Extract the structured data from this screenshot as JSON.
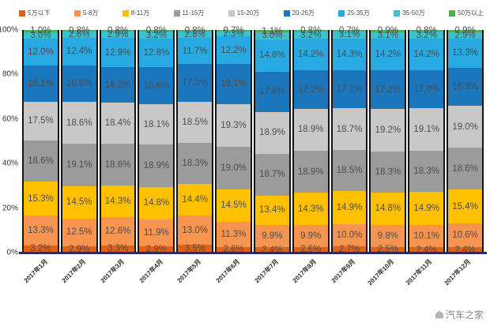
{
  "watermark": "汽车之家",
  "chart_data": {
    "type": "bar",
    "subtype": "100%-stacked-column",
    "title": "",
    "xlabel": "",
    "ylabel": "",
    "ylim": [
      0,
      100
    ],
    "grid": false,
    "legend_position": "top",
    "y_ticks": [
      "100%",
      "80%",
      "60%",
      "40%",
      "20%",
      "0%"
    ],
    "categories": [
      "2017年1月",
      "2017年2月",
      "2017年3月",
      "2017年4月",
      "2017年5月",
      "2017年6月",
      "2017年7月",
      "2017年8月",
      "2017年9月",
      "2017年10月",
      "2017年11月",
      "2017年12月"
    ],
    "series": [
      {
        "name": "5万以下",
        "color": "#E0611A",
        "values": [
          3.2,
          2.9,
          3.3,
          2.9,
          3.5,
          2.6,
          2.4,
          2.6,
          2.7,
          2.5,
          2.4,
          2.4
        ]
      },
      {
        "name": "5-8万",
        "color": "#F79450",
        "values": [
          13.3,
          12.5,
          12.6,
          11.9,
          13.0,
          11.3,
          9.9,
          9.9,
          10.0,
          9.8,
          10.1,
          10.6
        ]
      },
      {
        "name": "8-11万",
        "color": "#FFC000",
        "values": [
          15.3,
          14.5,
          14.3,
          14.8,
          14.4,
          14.5,
          13.4,
          14.3,
          14.9,
          14.8,
          14.9,
          15.4
        ]
      },
      {
        "name": "11-15万",
        "color": "#9B9B9B",
        "values": [
          18.6,
          19.1,
          18.6,
          18.9,
          18.3,
          19.0,
          18.7,
          18.9,
          18.5,
          18.3,
          18.3,
          18.6
        ]
      },
      {
        "name": "15-20万",
        "color": "#C8C8C8",
        "values": [
          17.5,
          18.6,
          18.4,
          18.1,
          18.5,
          19.3,
          18.9,
          18.9,
          18.7,
          19.2,
          19.1,
          19.0
        ]
      },
      {
        "name": "20-25万",
        "color": "#1B76BC",
        "values": [
          16.1,
          16.6,
          16.2,
          16.6,
          17.0,
          18.1,
          17.8,
          17.2,
          17.1,
          17.2,
          17.0,
          16.9
        ]
      },
      {
        "name": "25-35万",
        "color": "#29A9E1",
        "values": [
          12.0,
          12.4,
          12.9,
          12.8,
          11.7,
          12.2,
          14.8,
          14.2,
          14.3,
          14.2,
          14.2,
          13.3
        ]
      },
      {
        "name": "35-50万",
        "color": "#3EC1CD",
        "values": [
          3.0,
          2.6,
          2.9,
          3.2,
          2.8,
          2.3,
          3.0,
          3.2,
          3.1,
          3.1,
          3.2,
          2.9
        ]
      },
      {
        "name": "50万以上",
        "color": "#4CAF50",
        "values": [
          1.0,
          0.8,
          0.8,
          0.8,
          0.8,
          0.7,
          1.1,
          0.8,
          0.7,
          0.9,
          0.8,
          0.9
        ]
      }
    ]
  }
}
